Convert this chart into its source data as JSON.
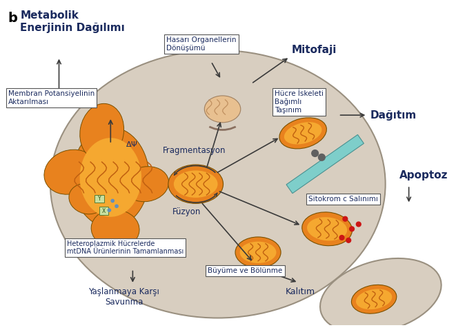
{
  "bg_color": "#ffffff",
  "cell_color": "#d8cec0",
  "cell_border": "#9a9080",
  "mito_orange": "#e8821e",
  "mito_inner": "#f5a830",
  "mito_dark": "#c06010",
  "box_bg": "#ffffff",
  "box_border": "#555555",
  "arrow_color": "#3a3a3a",
  "text_dark": "#1a2a5e",
  "text_label": "#1a2a5e",
  "cyan_tube": "#7ececa",
  "title_b": "b",
  "title_main": "Metabolik\nEnerjinin Dağılımı",
  "label_membran": "Membran Potansiyelinin\nAktarılması",
  "label_hasarli": "Hasarı Organellerin\nDönüşümü",
  "label_mitofaji": "Mitofaji",
  "label_hucre": "Hücre İskeleti\nBağımlı\nTaşınım",
  "label_dagitim": "Dağıtım",
  "label_apoptoz": "Apoptoz",
  "label_sitokrom": "Sitokrom c Salınımı",
  "label_fragmentasyon": "Fragmentasyon",
  "label_fuzyon": "Füzyon",
  "label_hetero": "Heteroplazmik Hücrelerde\nmtDNA Ürünlerinin Tamamlanması",
  "label_yaslanma": "Yaşlanmaya Karşı\nSavunma",
  "label_buyume": "Büyüme ve Bölünme",
  "label_kalitim": "Kalıtım"
}
